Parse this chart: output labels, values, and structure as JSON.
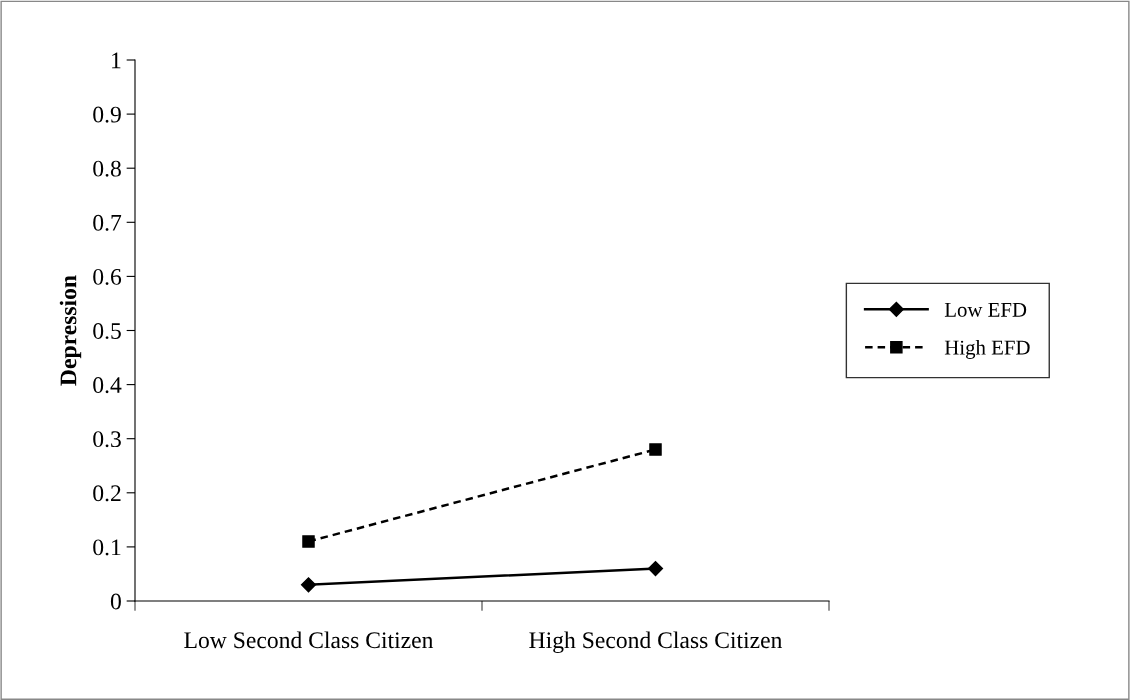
{
  "chart_data": {
    "type": "line",
    "ylabel": "Depression",
    "categories": [
      "Low Second Class Citizen",
      "High Second Class Citizen"
    ],
    "series": [
      {
        "name": "Low EFD",
        "color": "#000000",
        "values": [
          0.03,
          0.06
        ],
        "marker": "diamond",
        "line_style": "solid"
      },
      {
        "name": "High EFD",
        "color": "#000000",
        "values": [
          0.11,
          0.28
        ],
        "marker": "square",
        "line_style": "dashed"
      }
    ],
    "ylim": [
      0,
      1
    ],
    "yticks": [
      0,
      0.1,
      0.2,
      0.3,
      0.4,
      0.5,
      0.6,
      0.7,
      0.8,
      0.9,
      1
    ],
    "grid": false,
    "legend": "right"
  }
}
